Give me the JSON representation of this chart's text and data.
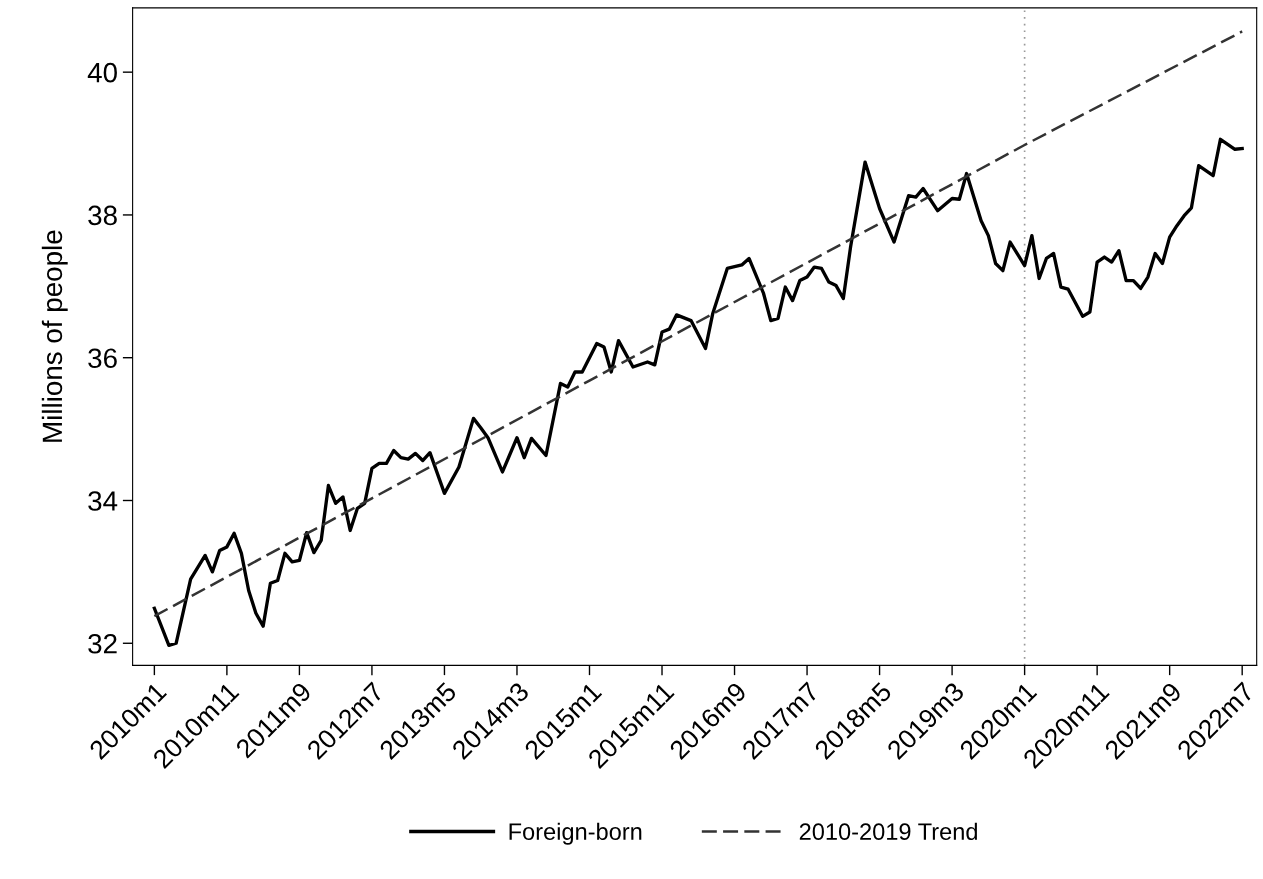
{
  "chart_data": {
    "type": "line",
    "ylabel": "Millions of people",
    "xlim": [
      "2009-10",
      "2022-09"
    ],
    "ylim": [
      31.69,
      40.9
    ],
    "yticks": [
      32,
      34,
      36,
      38,
      40
    ],
    "xticks": [
      {
        "value": "2010-01",
        "label": "2010m1"
      },
      {
        "value": "2010-11",
        "label": "2010m11"
      },
      {
        "value": "2011-09",
        "label": "2011m9"
      },
      {
        "value": "2012-07",
        "label": "2012m7"
      },
      {
        "value": "2013-05",
        "label": "2013m5"
      },
      {
        "value": "2014-03",
        "label": "2014m3"
      },
      {
        "value": "2015-01",
        "label": "2015m1"
      },
      {
        "value": "2015-11",
        "label": "2015m11"
      },
      {
        "value": "2016-09",
        "label": "2016m9"
      },
      {
        "value": "2017-07",
        "label": "2017m7"
      },
      {
        "value": "2018-05",
        "label": "2018m5"
      },
      {
        "value": "2019-03",
        "label": "2019m3"
      },
      {
        "value": "2020-01",
        "label": "2020m1"
      },
      {
        "value": "2020-11",
        "label": "2020m11"
      },
      {
        "value": "2021-09",
        "label": "2021m9"
      },
      {
        "value": "2022-07",
        "label": "2022m7"
      }
    ],
    "grid": false,
    "legend": "bottom",
    "ref_lines": [
      {
        "axis": "x",
        "value": "2020-01",
        "label": null,
        "color": "#999999",
        "line_style": "dotted"
      }
    ],
    "series": [
      {
        "name": "Foreign-born",
        "color": "#000000",
        "line_style": "solid",
        "x": [
          "2010-01",
          "2010-03",
          "2010-04",
          "2010-06",
          "2010-08",
          "2010-09",
          "2010-10",
          "2010-11",
          "2010-12",
          "2011-01",
          "2011-02",
          "2011-03",
          "2011-04",
          "2011-05",
          "2011-06",
          "2011-07",
          "2011-08",
          "2011-09",
          "2011-10",
          "2011-11",
          "2011-12",
          "2012-01",
          "2012-02",
          "2012-03",
          "2012-04",
          "2012-05",
          "2012-06",
          "2012-07",
          "2012-08",
          "2012-09",
          "2012-10",
          "2012-11",
          "2012-12",
          "2013-01",
          "2013-02",
          "2013-03",
          "2013-05",
          "2013-07",
          "2013-09",
          "2013-10",
          "2013-11",
          "2014-01",
          "2014-03",
          "2014-04",
          "2014-05",
          "2014-07",
          "2014-09",
          "2014-10",
          "2014-11",
          "2014-12",
          "2015-02",
          "2015-03",
          "2015-04",
          "2015-05",
          "2015-07",
          "2015-09",
          "2015-10",
          "2015-11",
          "2015-12",
          "2016-01",
          "2016-03",
          "2016-05",
          "2016-06",
          "2016-08",
          "2016-10",
          "2016-11",
          "2017-01",
          "2017-02",
          "2017-03",
          "2017-04",
          "2017-05",
          "2017-06",
          "2017-07",
          "2017-08",
          "2017-09",
          "2017-10",
          "2017-11",
          "2017-12",
          "2018-01",
          "2018-03",
          "2018-05",
          "2018-07",
          "2018-09",
          "2018-10",
          "2018-11",
          "2019-01",
          "2019-03",
          "2019-04",
          "2019-05",
          "2019-07",
          "2019-08",
          "2019-09",
          "2019-10",
          "2019-11",
          "2020-01",
          "2020-02",
          "2020-03",
          "2020-04",
          "2020-05",
          "2020-06",
          "2020-07",
          "2020-09",
          "2020-10",
          "2020-11",
          "2020-12",
          "2021-01",
          "2021-02",
          "2021-03",
          "2021-04",
          "2021-05",
          "2021-06",
          "2021-07",
          "2021-08",
          "2021-09",
          "2021-10",
          "2021-11",
          "2021-12",
          "2022-01",
          "2022-03",
          "2022-04",
          "2022-06",
          "2022-07"
        ],
        "values": [
          32.49,
          31.97,
          32.0,
          32.9,
          33.23,
          33.0,
          33.3,
          33.35,
          33.54,
          33.26,
          32.74,
          32.42,
          32.24,
          32.84,
          32.88,
          33.26,
          33.14,
          33.16,
          33.55,
          33.27,
          33.44,
          34.21,
          33.96,
          34.05,
          33.58,
          33.89,
          33.96,
          34.45,
          34.52,
          34.52,
          34.7,
          34.6,
          34.58,
          34.66,
          34.56,
          34.67,
          34.1,
          34.47,
          35.15,
          35.02,
          34.88,
          34.4,
          34.88,
          34.6,
          34.87,
          34.63,
          35.64,
          35.59,
          35.8,
          35.8,
          36.2,
          36.15,
          35.8,
          36.24,
          35.87,
          35.94,
          35.9,
          36.36,
          36.4,
          36.6,
          36.52,
          36.13,
          36.62,
          37.25,
          37.3,
          37.39,
          36.9,
          36.52,
          36.55,
          36.99,
          36.8,
          37.08,
          37.13,
          37.27,
          37.25,
          37.06,
          37.01,
          36.83,
          37.55,
          38.74,
          38.09,
          37.62,
          38.27,
          38.25,
          38.37,
          38.06,
          38.23,
          38.22,
          38.58,
          37.92,
          37.71,
          37.32,
          37.22,
          37.62,
          37.29,
          37.71,
          37.11,
          37.39,
          37.46,
          36.99,
          36.96,
          36.58,
          36.64,
          37.34,
          37.41,
          37.34,
          37.5,
          37.08,
          37.08,
          36.97,
          37.13,
          37.46,
          37.32,
          37.69,
          37.85,
          37.99,
          38.1,
          38.69,
          38.55,
          39.06,
          38.92,
          38.93
        ]
      },
      {
        "name": "2010-2019 Trend",
        "color": "#333333",
        "line_style": "dashed",
        "x": [
          "2010-01",
          "2012-07",
          "2015-01",
          "2017-07",
          "2020-01",
          "2022-07"
        ],
        "values": [
          32.38,
          34.03,
          35.68,
          37.33,
          38.98,
          40.57
        ]
      }
    ]
  }
}
